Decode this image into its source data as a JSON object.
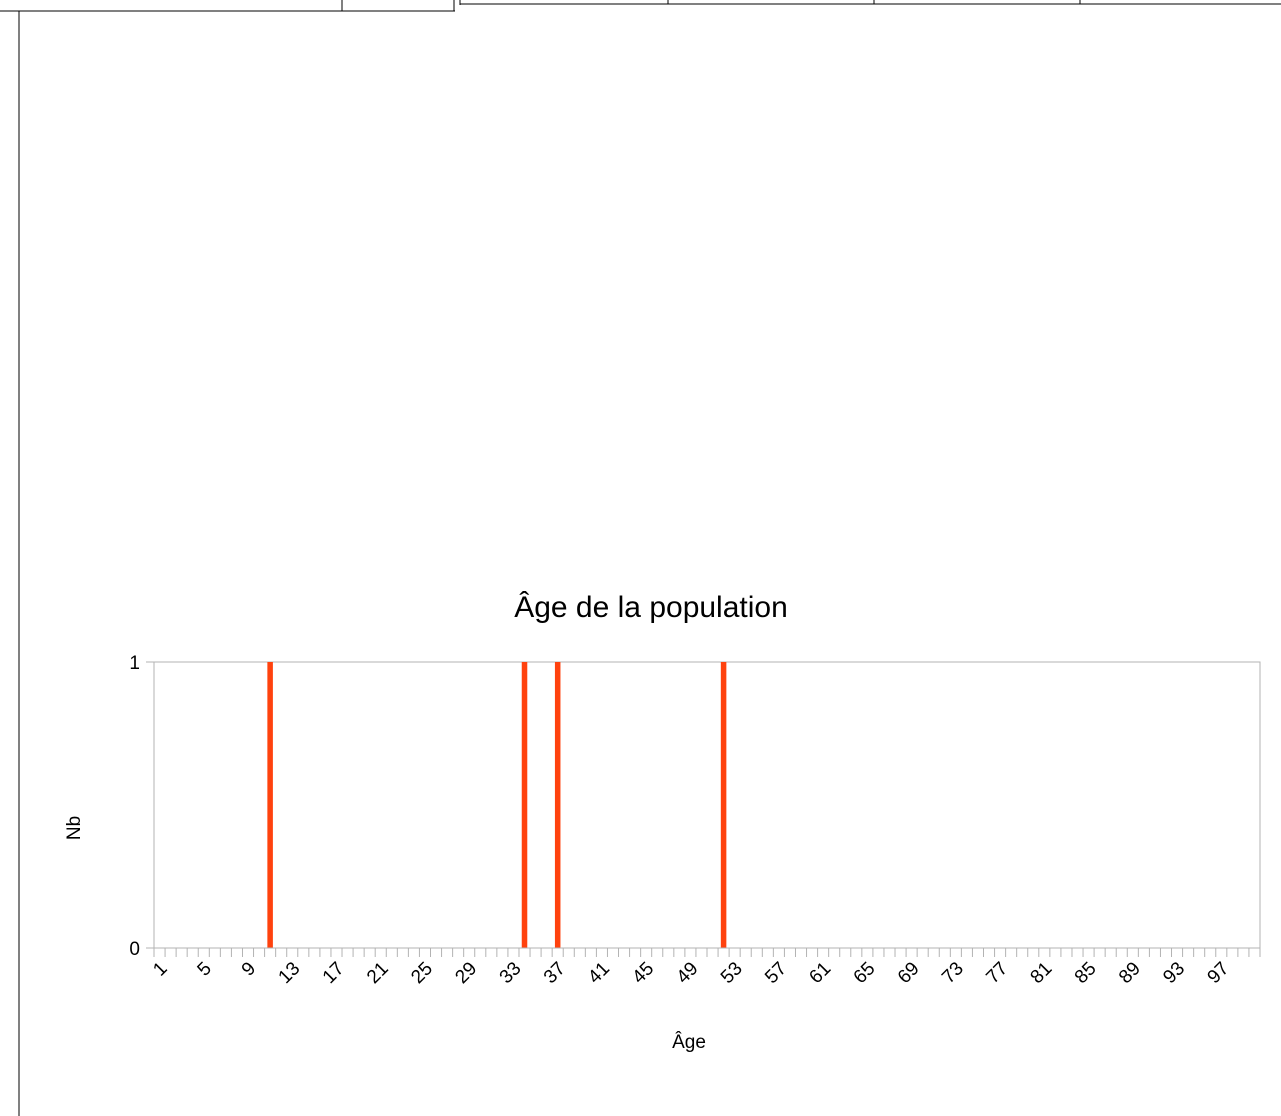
{
  "chart_data": {
    "type": "bar",
    "title": "Âge de la population",
    "xlabel": "Âge",
    "ylabel": "Nb",
    "ylim": [
      0,
      1
    ],
    "y_ticks": [
      "0",
      "1"
    ],
    "x": [
      1,
      2,
      3,
      4,
      5,
      6,
      7,
      8,
      9,
      10,
      11,
      12,
      13,
      14,
      15,
      16,
      17,
      18,
      19,
      20,
      21,
      22,
      23,
      24,
      25,
      26,
      27,
      28,
      29,
      30,
      31,
      32,
      33,
      34,
      35,
      36,
      37,
      38,
      39,
      40,
      41,
      42,
      43,
      44,
      45,
      46,
      47,
      48,
      49,
      50,
      51,
      52,
      53,
      54,
      55,
      56,
      57,
      58,
      59,
      60,
      61,
      62,
      63,
      64,
      65,
      66,
      67,
      68,
      69,
      70,
      71,
      72,
      73,
      74,
      75,
      76,
      77,
      78,
      79,
      80,
      81,
      82,
      83,
      84,
      85,
      86,
      87,
      88,
      89,
      90,
      91,
      92,
      93,
      94,
      95,
      96,
      97,
      98,
      99,
      100
    ],
    "values": [
      0,
      0,
      0,
      0,
      0,
      0,
      0,
      0,
      0,
      0,
      1,
      0,
      0,
      0,
      0,
      0,
      0,
      0,
      0,
      0,
      0,
      0,
      0,
      0,
      0,
      0,
      0,
      0,
      0,
      0,
      0,
      0,
      0,
      1,
      0,
      0,
      1,
      0,
      0,
      0,
      0,
      0,
      0,
      0,
      0,
      0,
      0,
      0,
      0,
      0,
      0,
      1,
      0,
      0,
      0,
      0,
      0,
      0,
      0,
      0,
      0,
      0,
      0,
      0,
      0,
      0,
      0,
      0,
      0,
      0,
      0,
      0,
      0,
      0,
      0,
      0,
      0,
      0,
      0,
      0,
      0,
      0,
      0,
      0,
      0,
      0,
      0,
      0,
      0,
      0,
      0,
      0,
      0,
      0,
      0,
      0,
      0,
      0,
      0,
      0
    ],
    "x_tick_labels": [
      "1",
      "5",
      "9",
      "13",
      "17",
      "21",
      "25",
      "29",
      "33",
      "37",
      "41",
      "45",
      "49",
      "53",
      "57",
      "61",
      "65",
      "69",
      "73",
      "77",
      "81",
      "85",
      "89",
      "93",
      "97"
    ],
    "x_tick_every": 4,
    "bar_color": "#ff420e",
    "grid": false,
    "legend": "none"
  }
}
